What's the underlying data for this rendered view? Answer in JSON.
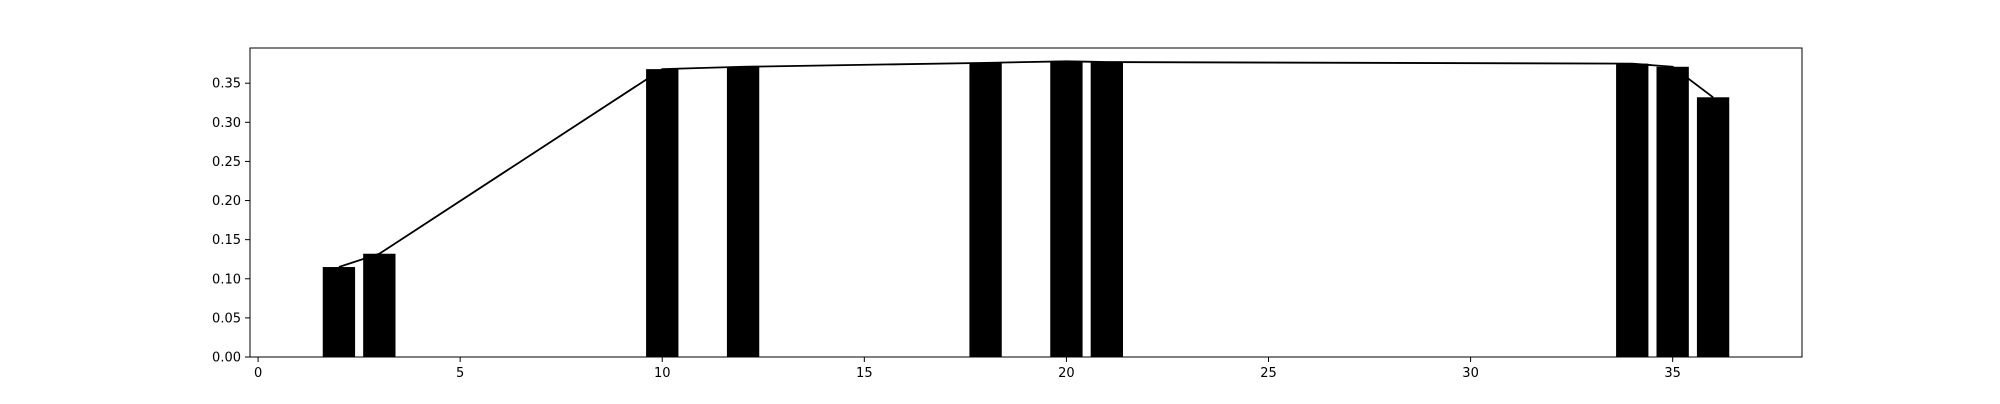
{
  "chart_data": {
    "type": "bar",
    "title": "",
    "xlabel": "",
    "ylabel": "",
    "xlim": [
      -0.2,
      38.2
    ],
    "ylim": [
      0,
      0.395
    ],
    "grid": false,
    "legend": "none",
    "x_ticks": [
      0,
      5,
      10,
      15,
      20,
      25,
      30,
      35
    ],
    "y_ticks": [
      0.0,
      0.05,
      0.1,
      0.15,
      0.2,
      0.25,
      0.3,
      0.35
    ],
    "x_tick_labels": [
      "0",
      "5",
      "10",
      "15",
      "20",
      "25",
      "30",
      "35"
    ],
    "y_tick_labels": [
      "0.00",
      "0.05",
      "0.10",
      "0.15",
      "0.20",
      "0.25",
      "0.30",
      "0.35"
    ],
    "bar_width": 0.8,
    "bar_color": "#000000",
    "line_color": "#000000",
    "x": [
      2,
      3,
      10,
      12,
      18,
      20,
      21,
      34,
      35,
      36
    ],
    "values": [
      0.115,
      0.132,
      0.368,
      0.371,
      0.376,
      0.378,
      0.377,
      0.375,
      0.371,
      0.332
    ]
  }
}
